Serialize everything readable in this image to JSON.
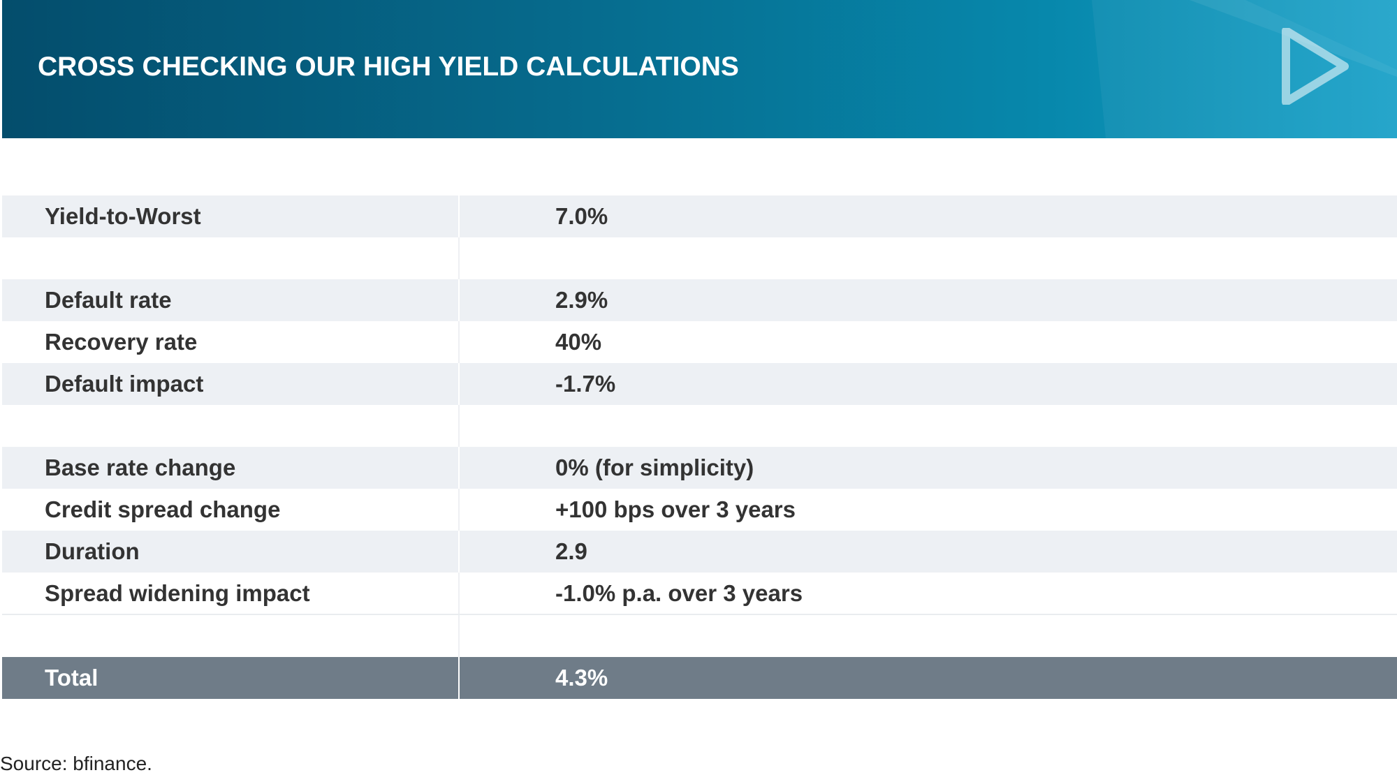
{
  "header": {
    "title": "CROSS CHECKING OUR HIGH YIELD CALCULATIONS",
    "logo_icon": "play-triangle-icon",
    "gradient_colors": [
      "#044d6c",
      "#0788ac",
      "#1ba2c9"
    ]
  },
  "table": {
    "rows": [
      {
        "label": "Yield-to-Worst",
        "value": "7.0%"
      },
      {
        "label": "",
        "value": ""
      },
      {
        "label": "Default rate",
        "value": "2.9%"
      },
      {
        "label": "Recovery rate",
        "value": "40%"
      },
      {
        "label": "Default impact",
        "value": "-1.7%"
      },
      {
        "label": "",
        "value": ""
      },
      {
        "label": "Base rate change",
        "value": "0% (for simplicity)"
      },
      {
        "label": "Credit spread change",
        "value": "+100 bps over 3 years"
      },
      {
        "label": "Duration",
        "value": "2.9"
      },
      {
        "label": "Spread widening impact",
        "value": "-1.0% p.a. over 3 years"
      },
      {
        "label": "",
        "value": ""
      }
    ],
    "total": {
      "label": "Total",
      "value": "4.3%"
    },
    "colors": {
      "shaded_row": "#edf0f4",
      "total_row": "#6f7c88",
      "text": "#333333"
    }
  },
  "footer": {
    "source": "Source: bfinance."
  }
}
